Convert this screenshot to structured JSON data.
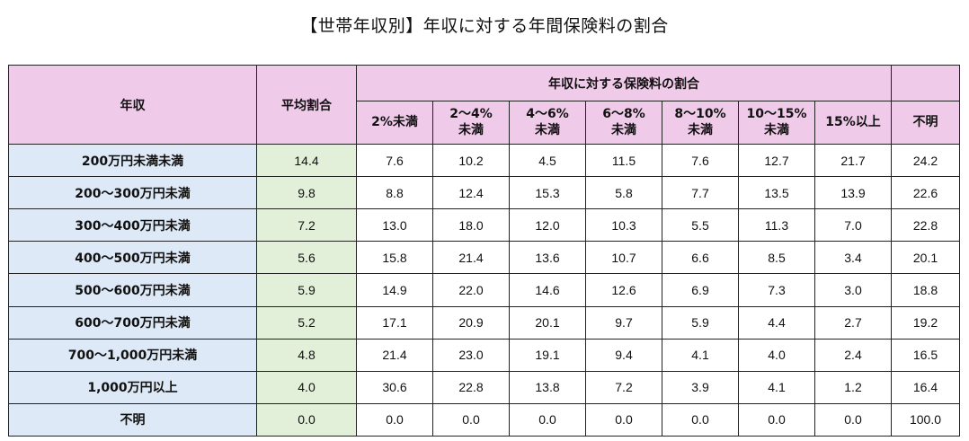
{
  "title": "【世帯年収別】年収に対する年間保険料の割合",
  "table": {
    "header": {
      "income": "年収",
      "average": "平均割合",
      "group": "年収に対する保険料の割合",
      "columns": [
        "2%未満",
        "2〜4%\n未満",
        "4〜6%\n未満",
        "6〜8%\n未満",
        "8〜10%\n未満",
        "10〜15%\n未満",
        "15%以上",
        "不明"
      ]
    },
    "rows": [
      {
        "label": "200万円未満未満",
        "avg": "14.4",
        "values": [
          "7.6",
          "10.2",
          "4.5",
          "11.5",
          "7.6",
          "12.7",
          "21.7",
          "24.2"
        ]
      },
      {
        "label": "200〜300万円未満",
        "avg": "9.8",
        "values": [
          "8.8",
          "12.4",
          "15.3",
          "5.8",
          "7.7",
          "13.5",
          "13.9",
          "22.6"
        ]
      },
      {
        "label": "300〜400万円未満",
        "avg": "7.2",
        "values": [
          "13.0",
          "18.0",
          "12.0",
          "10.3",
          "5.5",
          "11.3",
          "7.0",
          "22.8"
        ]
      },
      {
        "label": "400〜500万円未満",
        "avg": "5.6",
        "values": [
          "15.8",
          "21.4",
          "13.6",
          "10.7",
          "6.6",
          "8.5",
          "3.4",
          "20.1"
        ]
      },
      {
        "label": "500〜600万円未満",
        "avg": "5.9",
        "values": [
          "14.9",
          "22.0",
          "14.6",
          "12.6",
          "6.9",
          "7.3",
          "3.0",
          "18.8"
        ]
      },
      {
        "label": "600〜700万円未満",
        "avg": "5.2",
        "values": [
          "17.1",
          "20.9",
          "20.1",
          "9.7",
          "5.9",
          "4.4",
          "2.7",
          "19.2"
        ]
      },
      {
        "label": "700〜1,000万円未満",
        "avg": "4.8",
        "values": [
          "21.4",
          "23.0",
          "19.1",
          "9.4",
          "4.1",
          "4.0",
          "2.4",
          "16.5"
        ]
      },
      {
        "label": "1,000万円以上",
        "avg": "4.0",
        "values": [
          "30.6",
          "22.8",
          "13.8",
          "7.2",
          "3.9",
          "4.1",
          "1.2",
          "16.4"
        ]
      },
      {
        "label": "不明",
        "avg": "0.0",
        "values": [
          "0.0",
          "0.0",
          "0.0",
          "0.0",
          "0.0",
          "0.0",
          "0.0",
          "100.0"
        ]
      }
    ]
  },
  "colors": {
    "header_bg": "#f0cbe9",
    "row_label_bg": "#dde9f6",
    "average_bg": "#e2efd9"
  }
}
